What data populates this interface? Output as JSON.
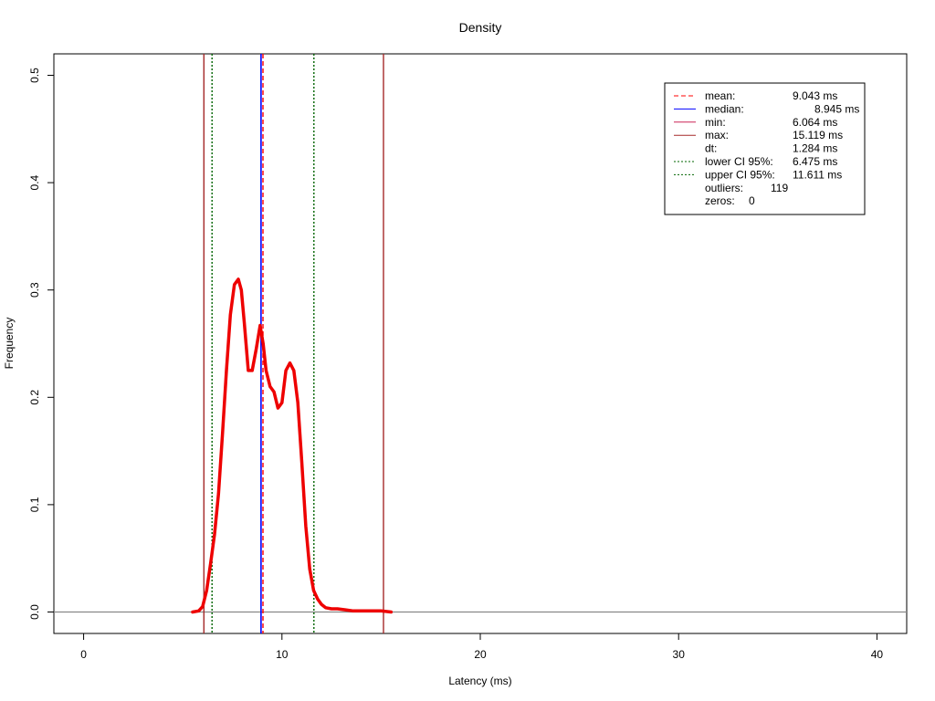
{
  "chart_data": {
    "type": "line",
    "title": "Density",
    "xlabel": "Latency (ms)",
    "ylabel": "Frequency",
    "xlim": [
      -1.5,
      41.5
    ],
    "ylim": [
      -0.02,
      0.52
    ],
    "x_ticks": [
      0,
      10,
      20,
      30,
      40
    ],
    "y_ticks": [
      0.0,
      0.1,
      0.2,
      0.3,
      0.4,
      0.5
    ],
    "x_tick_labels": [
      "0",
      "10",
      "20",
      "30",
      "40"
    ],
    "y_tick_labels": [
      "0.0",
      "0.1",
      "0.2",
      "0.3",
      "0.4",
      "0.5"
    ],
    "grid": false,
    "baseline": 0,
    "series": [
      {
        "color": "#ee0000",
        "x": [
          5.5,
          5.8,
          6.0,
          6.2,
          6.4,
          6.6,
          6.8,
          7.0,
          7.2,
          7.4,
          7.6,
          7.8,
          7.95,
          8.1,
          8.3,
          8.5,
          8.7,
          8.9,
          9.05,
          9.2,
          9.4,
          9.6,
          9.8,
          10.0,
          10.2,
          10.4,
          10.6,
          10.8,
          11.0,
          11.2,
          11.4,
          11.6,
          11.8,
          12.0,
          12.2,
          12.5,
          12.8,
          13.2,
          13.6,
          14.0,
          14.5,
          15.0,
          15.5
        ],
        "y": [
          0.0,
          0.001,
          0.005,
          0.02,
          0.045,
          0.072,
          0.11,
          0.165,
          0.225,
          0.277,
          0.305,
          0.31,
          0.3,
          0.27,
          0.225,
          0.225,
          0.245,
          0.267,
          0.25,
          0.225,
          0.21,
          0.205,
          0.19,
          0.195,
          0.225,
          0.232,
          0.225,
          0.195,
          0.14,
          0.08,
          0.04,
          0.02,
          0.012,
          0.007,
          0.004,
          0.003,
          0.003,
          0.002,
          0.001,
          0.001,
          0.001,
          0.001,
          0.0
        ]
      }
    ],
    "vlines": [
      {
        "label": "mean",
        "x": 9.043,
        "color": "#ff0000",
        "style": "dashed"
      },
      {
        "label": "median",
        "x": 8.945,
        "color": "#0000ff",
        "style": "solid"
      },
      {
        "label": "min",
        "x": 6.064,
        "color": "#a52a2a",
        "style": "solid"
      },
      {
        "label": "max",
        "x": 15.119,
        "color": "#a52a2a",
        "style": "solid"
      },
      {
        "label": "lower CI 95%",
        "x": 6.475,
        "color": "#006400",
        "style": "dotted"
      },
      {
        "label": "upper CI 95%",
        "x": 11.611,
        "color": "#006400",
        "style": "dotted"
      }
    ],
    "legend": {
      "position": "top-right",
      "entries": [
        {
          "label": "mean:",
          "value": "9.043 ms",
          "color": "#ff0000",
          "style": "dashed"
        },
        {
          "label": "median:",
          "value": "8.945 ms",
          "color": "#0000ff",
          "style": "solid"
        },
        {
          "label": "min:",
          "value": "6.064 ms",
          "color": "#cc2255",
          "style": "solid"
        },
        {
          "label": "max:",
          "value": "15.119 ms",
          "color": "#a52a2a",
          "style": "solid"
        },
        {
          "label": "dt:",
          "value": "1.284 ms",
          "color": "",
          "style": "none"
        },
        {
          "label": "lower CI 95%:",
          "value": "6.475 ms",
          "color": "#006400",
          "style": "dotted"
        },
        {
          "label": "upper CI 95%:",
          "value": "11.611 ms",
          "color": "#006400",
          "style": "dotted"
        },
        {
          "label": "outliers:",
          "value": "119",
          "color": "",
          "style": "none"
        },
        {
          "label": "zeros:",
          "value": "0",
          "color": "",
          "style": "none"
        }
      ]
    }
  }
}
